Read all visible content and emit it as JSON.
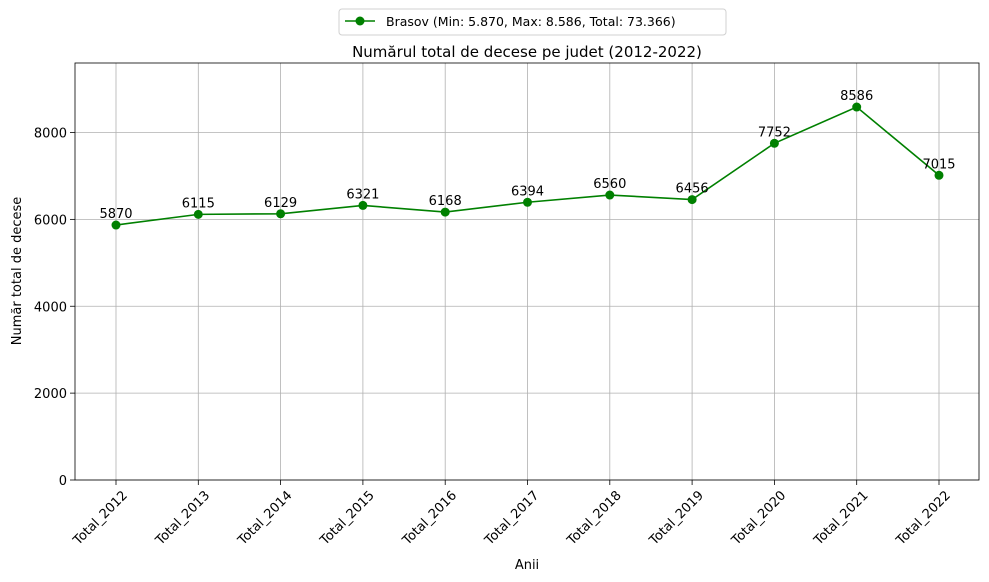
{
  "chart_data": {
    "type": "line",
    "title": "Numărul total de decese pe judet (2012-2022)",
    "xlabel": "Anii",
    "ylabel": "Număr total de decese",
    "categories": [
      "Total_2012",
      "Total_2013",
      "Total_2014",
      "Total_2015",
      "Total_2016",
      "Total_2017",
      "Total_2018",
      "Total_2019",
      "Total_2020",
      "Total_2021",
      "Total_2022"
    ],
    "series": [
      {
        "name": "Brasov (Min: 5.870, Max: 8.586, Total: 73.366)",
        "color": "#008000",
        "values": [
          5870,
          6115,
          6129,
          6321,
          6168,
          6394,
          6560,
          6456,
          7752,
          8586,
          7015
        ]
      }
    ],
    "ylim": [
      0,
      9600
    ],
    "yticks": [
      0,
      2000,
      4000,
      6000,
      8000
    ],
    "grid": true,
    "legend_position": "top-center"
  }
}
